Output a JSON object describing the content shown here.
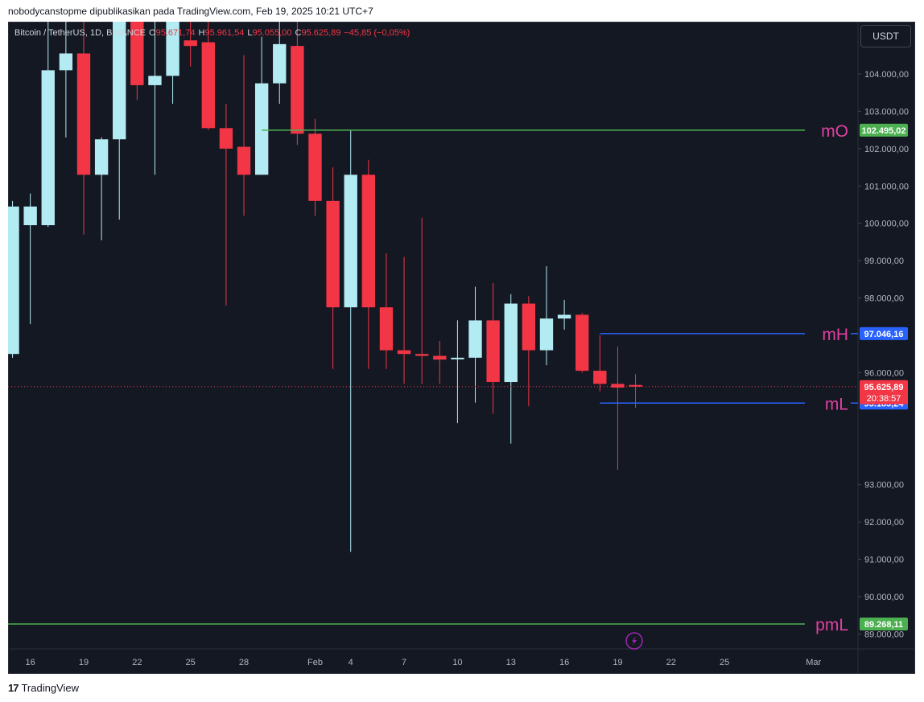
{
  "header": {
    "attribution": "nobodycanstopme dipublikasikan pada TradingView.com, Feb 19, 2025 10:21 UTC+7"
  },
  "legend": {
    "symbol": "Bitcoin / TetherUS, 1D, BINANCE",
    "o_label": "O",
    "o_value": "95.671,74",
    "h_label": "H",
    "h_value": "95.961,54",
    "l_label": "L",
    "l_value": "95.055,00",
    "c_label": "C",
    "c_value": "95.625,89",
    "change": "−45,85 (−0,05%)"
  },
  "currency_button": "USDT",
  "footer": {
    "brand": "TradingView",
    "logo_text": "17"
  },
  "colors": {
    "up": "#b2ebf2",
    "down": "#f23645",
    "background": "#141823",
    "green_level": "#4caf50",
    "blue_level": "#2962ff",
    "label_pink": "#e040a0"
  },
  "chart_data": {
    "type": "candlestick",
    "y_range": [
      88600,
      105400
    ],
    "y_ticks": [
      {
        "value": 104000,
        "label": "104.000,00"
      },
      {
        "value": 103000,
        "label": "103.000,00"
      },
      {
        "value": 102000,
        "label": "102.000,00"
      },
      {
        "value": 101000,
        "label": "101.000,00"
      },
      {
        "value": 100000,
        "label": "100.000,00"
      },
      {
        "value": 99000,
        "label": "99.000,00"
      },
      {
        "value": 98000,
        "label": "98.000,00"
      },
      {
        "value": 96000,
        "label": "96.000,00"
      },
      {
        "value": 93000,
        "label": "93.000,00"
      },
      {
        "value": 92000,
        "label": "92.000,00"
      },
      {
        "value": 91000,
        "label": "91.000,00"
      },
      {
        "value": 90000,
        "label": "90.000,00"
      },
      {
        "value": 89000,
        "label": "89.000,00"
      }
    ],
    "x_ticks": [
      {
        "day": 16,
        "label": "16"
      },
      {
        "day": 19,
        "label": "19"
      },
      {
        "day": 22,
        "label": "22"
      },
      {
        "day": 25,
        "label": "25"
      },
      {
        "day": 28,
        "label": "28"
      },
      {
        "day": 32,
        "label": "Feb"
      },
      {
        "day": 34,
        "label": "4"
      },
      {
        "day": 37,
        "label": "7"
      },
      {
        "day": 40,
        "label": "10"
      },
      {
        "day": 43,
        "label": "13"
      },
      {
        "day": 46,
        "label": "16"
      },
      {
        "day": 49,
        "label": "19"
      },
      {
        "day": 52,
        "label": "22"
      },
      {
        "day": 55,
        "label": "25"
      },
      {
        "day": 60,
        "label": "Mar"
      }
    ],
    "x_range_days": [
      14.75,
      62.5
    ],
    "candles": [
      {
        "day": 15,
        "o": 96500,
        "h": 100600,
        "l": 96400,
        "c": 100450
      },
      {
        "day": 16,
        "o": 99950,
        "h": 100800,
        "l": 97300,
        "c": 100450
      },
      {
        "day": 17,
        "o": 99950,
        "h": 106000,
        "l": 99900,
        "c": 104100
      },
      {
        "day": 18,
        "o": 104100,
        "h": 106000,
        "l": 102300,
        "c": 104550
      },
      {
        "day": 19,
        "o": 104550,
        "h": 106000,
        "l": 99700,
        "c": 101300
      },
      {
        "day": 20,
        "o": 101300,
        "h": 102300,
        "l": 99550,
        "c": 102250
      },
      {
        "day": 21,
        "o": 102250,
        "h": 106000,
        "l": 100100,
        "c": 105700
      },
      {
        "day": 22,
        "o": 105700,
        "h": 106000,
        "l": 103300,
        "c": 103700
      },
      {
        "day": 23,
        "o": 103700,
        "h": 106000,
        "l": 101300,
        "c": 103950
      },
      {
        "day": 24,
        "o": 103950,
        "h": 106000,
        "l": 103200,
        "c": 105500
      },
      {
        "day": 25,
        "o": 104900,
        "h": 106000,
        "l": 104200,
        "c": 104750
      },
      {
        "day": 26,
        "o": 104850,
        "h": 106000,
        "l": 102500,
        "c": 102550
      },
      {
        "day": 27,
        "o": 102550,
        "h": 103200,
        "l": 97800,
        "c": 102000
      },
      {
        "day": 28,
        "o": 102050,
        "h": 104500,
        "l": 100200,
        "c": 101300
      },
      {
        "day": 29,
        "o": 101300,
        "h": 105000,
        "l": 101300,
        "c": 103750
      },
      {
        "day": 30,
        "o": 103750,
        "h": 106000,
        "l": 103200,
        "c": 104800
      },
      {
        "day": 31,
        "o": 104750,
        "h": 106000,
        "l": 102100,
        "c": 102400
      },
      {
        "day": 32,
        "o": 102400,
        "h": 102800,
        "l": 100200,
        "c": 100600
      },
      {
        "day": 33,
        "o": 100600,
        "h": 101500,
        "l": 96100,
        "c": 97750
      },
      {
        "day": 34,
        "o": 97750,
        "h": 102500,
        "l": 91200,
        "c": 101300
      },
      {
        "day": 35,
        "o": 101300,
        "h": 101700,
        "l": 96100,
        "c": 97750
      },
      {
        "day": 36,
        "o": 97750,
        "h": 99200,
        "l": 96100,
        "c": 96600
      },
      {
        "day": 37,
        "o": 96600,
        "h": 99100,
        "l": 95700,
        "c": 96500
      },
      {
        "day": 38,
        "o": 96500,
        "h": 100150,
        "l": 95700,
        "c": 96450
      },
      {
        "day": 39,
        "o": 96450,
        "h": 96850,
        "l": 95700,
        "c": 96350
      },
      {
        "day": 40,
        "o": 96400,
        "h": 97400,
        "l": 94650,
        "c": 96400
      },
      {
        "day": 41,
        "o": 96400,
        "h": 98300,
        "l": 95200,
        "c": 97400
      },
      {
        "day": 42,
        "o": 97400,
        "h": 98400,
        "l": 94900,
        "c": 95750
      },
      {
        "day": 43,
        "o": 95750,
        "h": 98100,
        "l": 94100,
        "c": 97850
      },
      {
        "day": 44,
        "o": 97850,
        "h": 98050,
        "l": 95100,
        "c": 96600
      },
      {
        "day": 45,
        "o": 96600,
        "h": 98850,
        "l": 96200,
        "c": 97450
      },
      {
        "day": 46,
        "o": 97450,
        "h": 97950,
        "l": 97150,
        "c": 97550
      },
      {
        "day": 47,
        "o": 97550,
        "h": 97600,
        "l": 96000,
        "c": 96050
      },
      {
        "day": 48,
        "o": 96050,
        "h": 97000,
        "l": 95500,
        "c": 95700
      },
      {
        "day": 49,
        "o": 95700,
        "h": 96700,
        "l": 93400,
        "c": 95600
      },
      {
        "day": 50,
        "o": 95670,
        "h": 95960,
        "l": 95055,
        "c": 95625
      }
    ],
    "levels": [
      {
        "name": "mO",
        "value": 102495.02,
        "label": "102.495,02",
        "color": "green",
        "from_day": 29
      },
      {
        "name": "mH",
        "value": 97046.16,
        "label": "97.046,16",
        "color": "blue",
        "from_day": 48
      },
      {
        "name": "mL",
        "value": 95185.24,
        "label": "95.185,24",
        "color": "blue",
        "from_day": 48
      },
      {
        "name": "pmL",
        "value": 89268.11,
        "label": "89.268,11",
        "color": "green",
        "from_day": 14.75
      }
    ],
    "last_price": {
      "value": 95625.89,
      "label": "95.625,89",
      "countdown": "20:38:57"
    }
  }
}
